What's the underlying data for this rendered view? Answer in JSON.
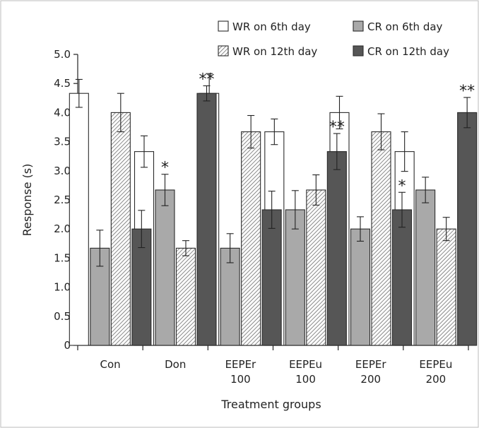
{
  "chart_data": {
    "type": "bar",
    "title": "",
    "xlabel": "Treatment groups",
    "ylabel": "Response (s)",
    "ylim": [
      0,
      5
    ],
    "yticks": [
      "0",
      "0.5",
      "1.0",
      "1.5",
      "2.0",
      "2.5",
      "3.0",
      "3.5",
      "4.0",
      "4.5",
      "5.0"
    ],
    "legend_position": "top-right",
    "grid": false,
    "categories": [
      [
        "Con"
      ],
      [
        "Don"
      ],
      [
        "EEPEr",
        "100"
      ],
      [
        "EEPEu",
        "100"
      ],
      [
        "EEPEr",
        "200"
      ],
      [
        "EEPEu",
        "200"
      ]
    ],
    "series": [
      {
        "name": "WR on 6th day",
        "pattern": "white",
        "values": [
          4.33,
          3.33,
          4.33,
          3.67,
          4.0,
          3.33
        ],
        "errors": [
          0.24,
          0.27,
          0.34,
          0.22,
          0.28,
          0.34
        ],
        "significance": [
          "",
          "",
          "",
          "",
          "",
          ""
        ]
      },
      {
        "name": "CR on 6th day",
        "pattern": "lightgray",
        "values": [
          1.67,
          2.67,
          1.67,
          2.33,
          2.0,
          2.67
        ],
        "errors": [
          0.31,
          0.27,
          0.25,
          0.33,
          0.21,
          0.22
        ],
        "significance": [
          "",
          "*",
          "",
          "",
          "",
          ""
        ]
      },
      {
        "name": "WR on 12th day",
        "pattern": "hatched",
        "values": [
          4.0,
          1.67,
          3.67,
          2.67,
          3.67,
          2.0
        ],
        "errors": [
          0.33,
          0.13,
          0.28,
          0.26,
          0.31,
          0.2
        ],
        "significance": [
          "",
          "",
          "",
          "",
          "",
          ""
        ]
      },
      {
        "name": "CR on 12th day",
        "pattern": "darkgray",
        "values": [
          2.0,
          4.33,
          2.33,
          3.33,
          2.33,
          4.0
        ],
        "errors": [
          0.32,
          0.13,
          0.32,
          0.31,
          0.3,
          0.26
        ],
        "significance": [
          "",
          "**",
          "",
          "**",
          "*",
          "**"
        ]
      }
    ],
    "colors": {
      "white": "#ffffff",
      "lightgray": "#a9a9a9",
      "darkgray": "#565656",
      "outline": "#2b2b2b"
    }
  }
}
